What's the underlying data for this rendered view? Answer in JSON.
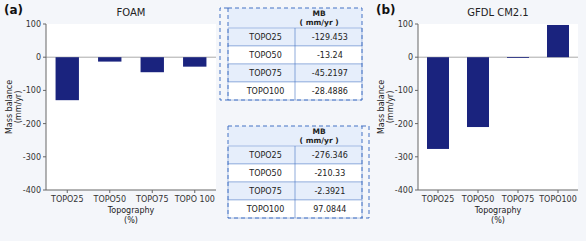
{
  "chart_data": [
    {
      "type": "bar",
      "title": "FOAM",
      "annotations": [
        "(a)"
      ],
      "categories": [
        "TOPO25",
        "TOPO50",
        "TOPO75",
        "TOPO 100"
      ],
      "values": [
        -129.453,
        -13.24,
        -45.2197,
        -28.4886
      ],
      "color": "#1a237e",
      "xlabel": "Topography\n(%)",
      "ylabel": "Mass balance\n(mm/yr)",
      "ylim": [
        -400,
        100
      ],
      "yticks": [
        100,
        0,
        -100,
        -200,
        -300,
        -400
      ],
      "grid": false
    },
    {
      "type": "table",
      "header": "MB\n( mm/yr )",
      "rows": [
        [
          "TOPO25",
          -129.453
        ],
        [
          "TOPO50",
          -13.24
        ],
        [
          "TOPO75",
          -45.2197
        ],
        [
          "TOPO100",
          -28.4886
        ]
      ]
    },
    {
      "type": "table",
      "header": "MB\n( mm/yr )",
      "rows": [
        [
          "TOPO25",
          -276.346
        ],
        [
          "TOPO50",
          -210.33
        ],
        [
          "TOPO75",
          -2.3921
        ],
        [
          "TOPO100",
          97.0844
        ]
      ]
    },
    {
      "type": "bar",
      "title": "GFDL CM2.1",
      "annotations": [
        "(b)"
      ],
      "categories": [
        "TOPO25",
        "TOPO50",
        "TOPO75",
        "TOPO100"
      ],
      "values": [
        -276.346,
        -210.33,
        -2.3921,
        97.0844
      ],
      "color": "#1a237e",
      "xlabel": "Topography\n(%)",
      "ylabel": "Mass balance\n(mm/yr)",
      "ylim": [
        -400,
        100
      ],
      "yticks": [
        100,
        0,
        -100,
        -200,
        -300,
        -400
      ],
      "grid": false
    }
  ]
}
